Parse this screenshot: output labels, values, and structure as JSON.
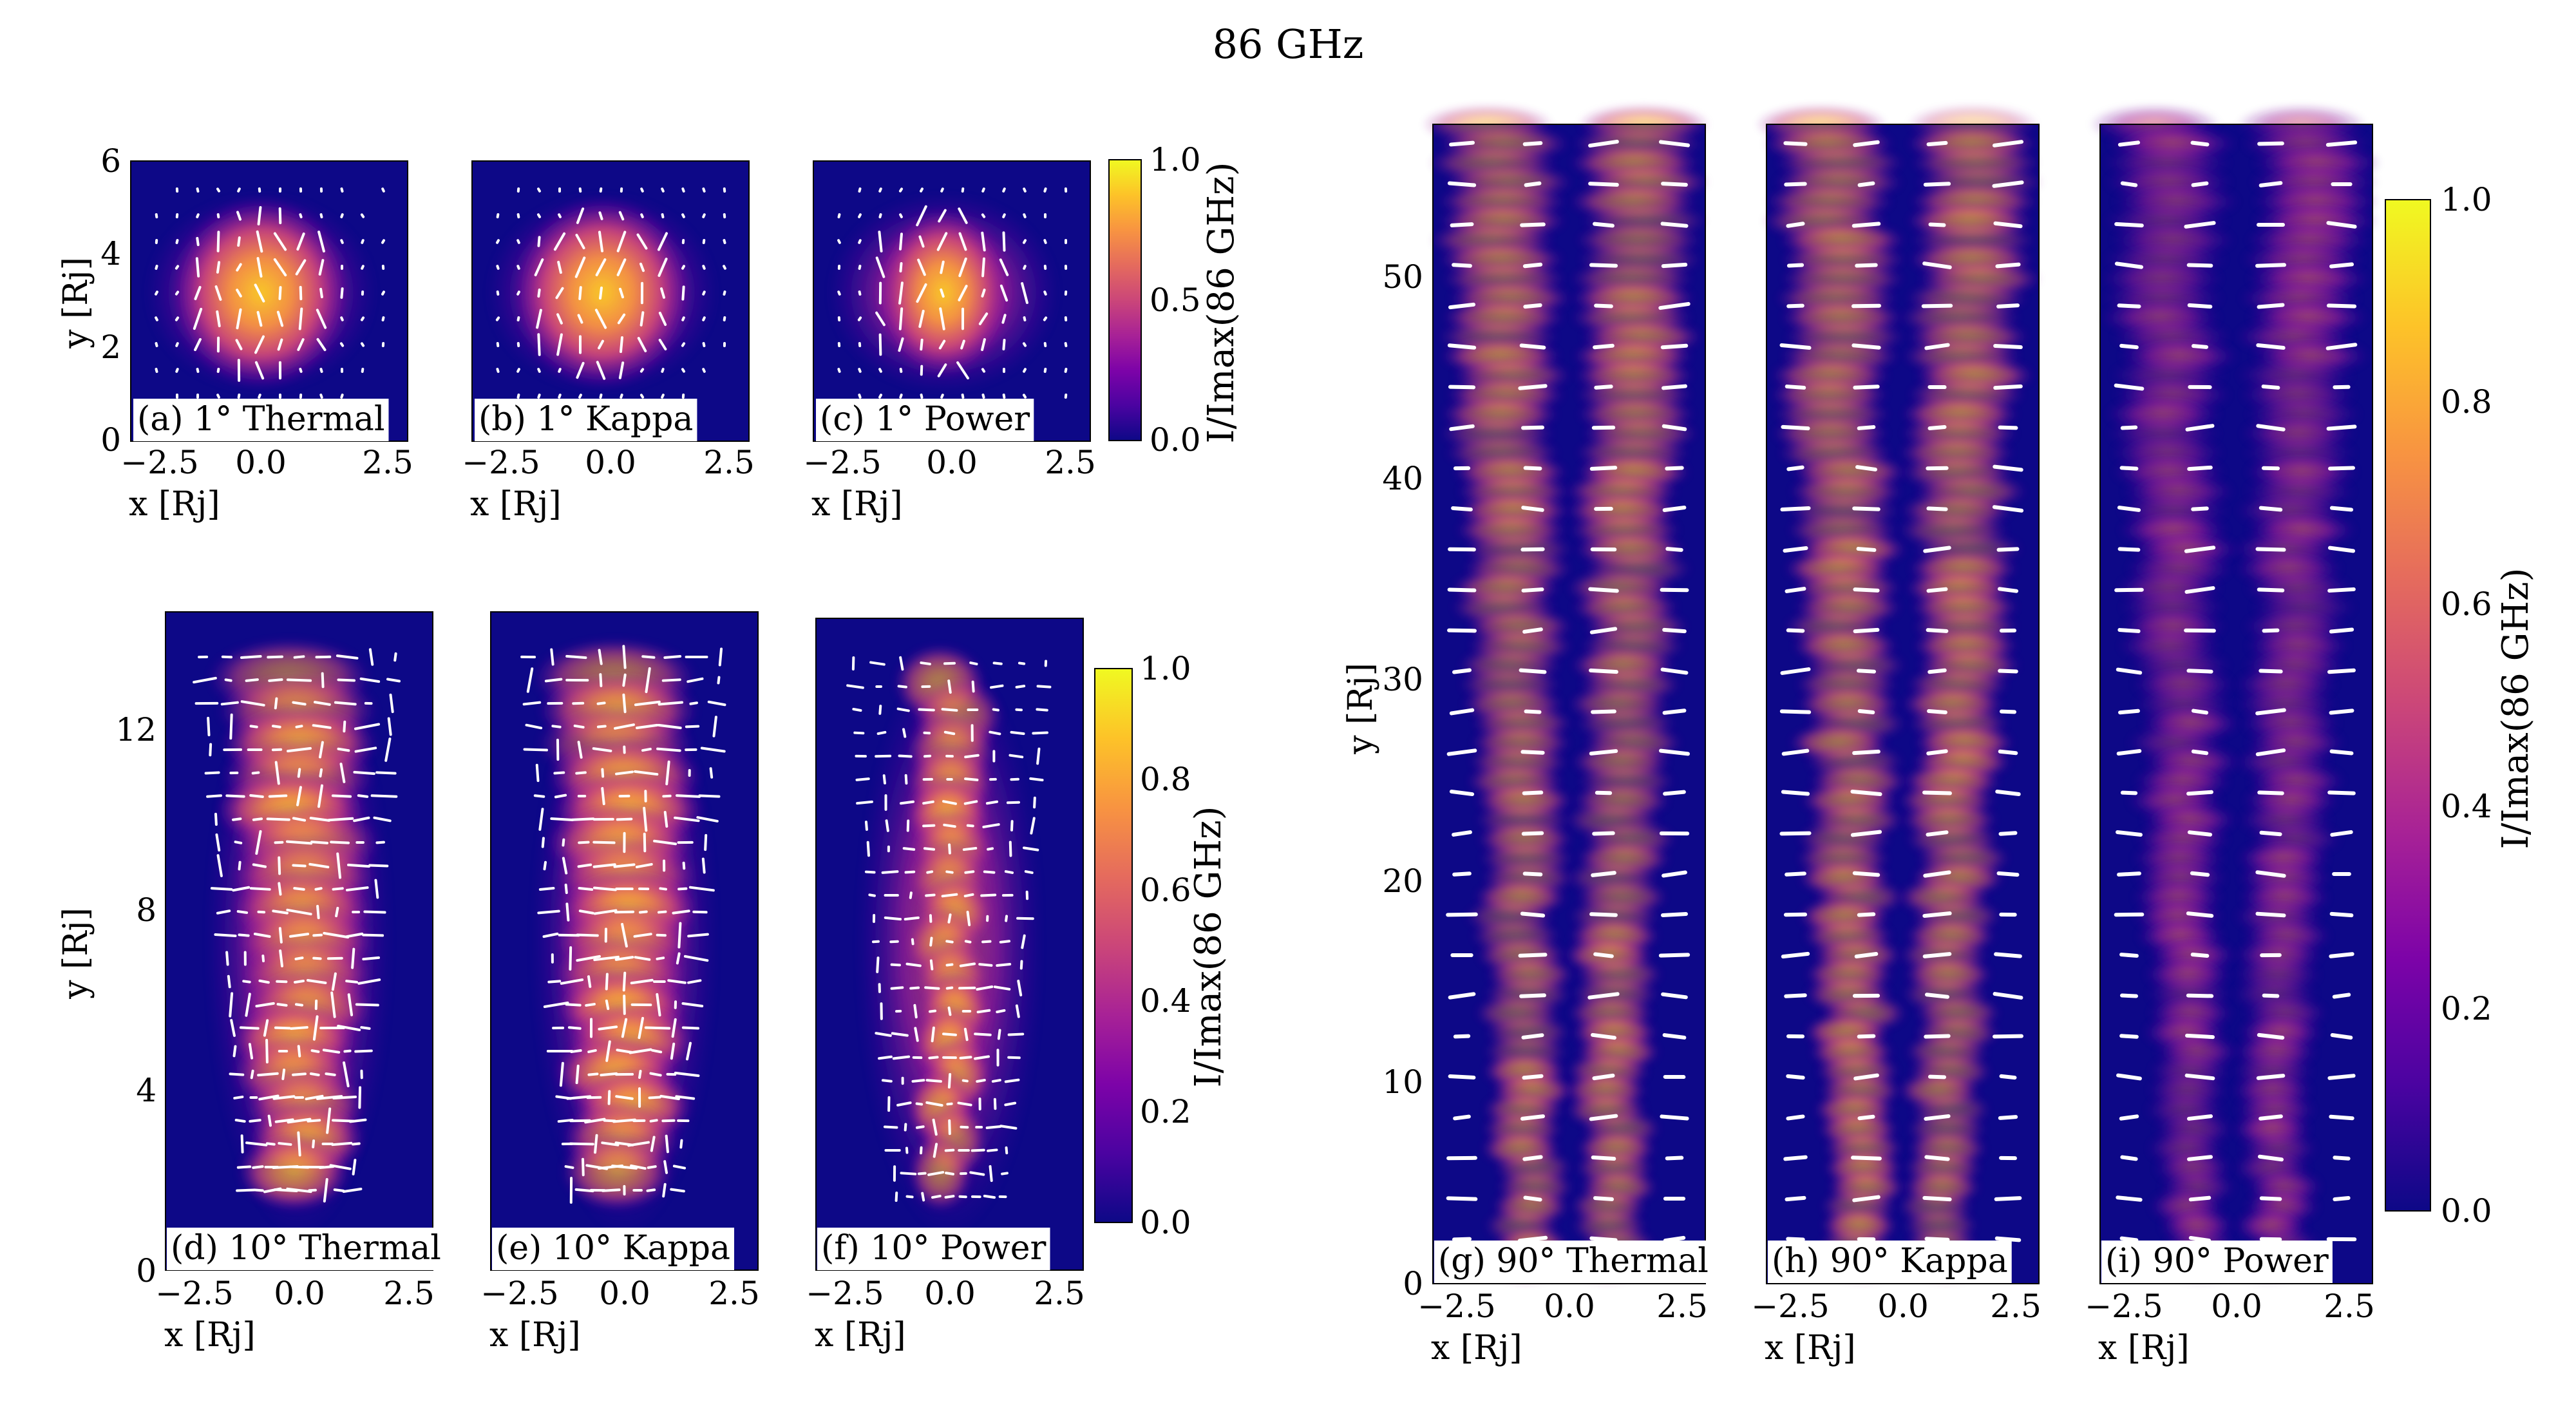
{
  "figure": {
    "title": "86 GHz"
  },
  "colormap": {
    "name": "plasma",
    "stops": [
      "#0d0887",
      "#4b03a1",
      "#7d03a8",
      "#a82296",
      "#cb4679",
      "#e56b5d",
      "#f89441",
      "#fdc328",
      "#f0f921"
    ]
  },
  "panels": [
    {
      "id": "a",
      "label": "(a) 1° Thermal",
      "group": "1deg",
      "xlabel": "x [Rj]",
      "ylabel": "y [Rj]",
      "xticks": [
        "−2.5",
        "0.0",
        "2.5"
      ],
      "yticks": [
        "0",
        "2",
        "4",
        "6"
      ]
    },
    {
      "id": "b",
      "label": "(b) 1° Kappa",
      "group": "1deg",
      "xlabel": "x [Rj]",
      "xticks": [
        "−2.5",
        "0.0",
        "2.5"
      ]
    },
    {
      "id": "c",
      "label": "(c) 1° Power",
      "group": "1deg",
      "xlabel": "x [Rj]",
      "xticks": [
        "−2.5",
        "0.0",
        "2.5"
      ]
    },
    {
      "id": "d",
      "label": "(d) 10° Thermal",
      "group": "10deg",
      "xlabel": "x [Rj]",
      "ylabel": "y [Rj]",
      "xticks": [
        "−2.5",
        "0.0",
        "2.5"
      ],
      "yticks": [
        "0",
        "4",
        "8",
        "12"
      ]
    },
    {
      "id": "e",
      "label": "(e) 10° Kappa",
      "group": "10deg",
      "xlabel": "x [Rj]",
      "xticks": [
        "−2.5",
        "0.0",
        "2.5"
      ]
    },
    {
      "id": "f",
      "label": "(f) 10° Power",
      "group": "10deg",
      "xlabel": "x [Rj]",
      "xticks": [
        "−2.5",
        "0.0",
        "2.5"
      ]
    },
    {
      "id": "g",
      "label": "(g) 90° Thermal",
      "group": "90deg",
      "xlabel": "x [Rj]",
      "ylabel": "y [Rj]",
      "xticks": [
        "−2.5",
        "0.0",
        "2.5"
      ],
      "yticks": [
        "0",
        "10",
        "20",
        "30",
        "40",
        "50"
      ]
    },
    {
      "id": "h",
      "label": "(h) 90° Kappa",
      "group": "90deg",
      "xlabel": "x [Rj]",
      "xticks": [
        "−2.5",
        "0.0",
        "2.5"
      ]
    },
    {
      "id": "i",
      "label": "(i) 90° Power",
      "group": "90deg",
      "xlabel": "x [Rj]",
      "xticks": [
        "−2.5",
        "0.0",
        "2.5"
      ]
    }
  ],
  "colorbars": [
    {
      "id": "cb1",
      "label": "I/Imax(86 GHz)",
      "ticks": [
        "0.0",
        "0.5",
        "1.0"
      ]
    },
    {
      "id": "cb2",
      "label": "I/Imax(86 GHz)",
      "ticks": [
        "0.0",
        "0.2",
        "0.4",
        "0.6",
        "0.8",
        "1.0"
      ]
    },
    {
      "id": "cb3",
      "label": "I/Imax(86 GHz)",
      "ticks": [
        "0.0",
        "0.2",
        "0.4",
        "0.6",
        "0.8",
        "1.0"
      ]
    }
  ],
  "chart_data": {
    "type": "heatmap",
    "title": "86 GHz",
    "quantity": "I/Imax(86 GHz)",
    "x_range": [
      -3,
      3
    ],
    "series": [
      {
        "panel": "a",
        "inclination_deg": 1,
        "model": "Thermal",
        "y_range": [
          0,
          6
        ],
        "color_range": [
          0,
          1
        ]
      },
      {
        "panel": "b",
        "inclination_deg": 1,
        "model": "Kappa",
        "y_range": [
          0,
          6
        ],
        "color_range": [
          0,
          1
        ]
      },
      {
        "panel": "c",
        "inclination_deg": 1,
        "model": "Power",
        "y_range": [
          0,
          6
        ],
        "color_range": [
          0,
          1
        ]
      },
      {
        "panel": "d",
        "inclination_deg": 10,
        "model": "Thermal",
        "y_range": [
          0,
          14.5
        ],
        "color_range": [
          0,
          1
        ]
      },
      {
        "panel": "e",
        "inclination_deg": 10,
        "model": "Kappa",
        "y_range": [
          0,
          14.5
        ],
        "color_range": [
          0,
          1
        ]
      },
      {
        "panel": "f",
        "inclination_deg": 10,
        "model": "Power",
        "y_range": [
          0,
          14.5
        ],
        "color_range": [
          0,
          1
        ]
      },
      {
        "panel": "g",
        "inclination_deg": 90,
        "model": "Thermal",
        "y_range": [
          0,
          58
        ],
        "color_range": [
          0,
          1
        ]
      },
      {
        "panel": "h",
        "inclination_deg": 90,
        "model": "Kappa",
        "y_range": [
          0,
          58
        ],
        "color_range": [
          0,
          1
        ]
      },
      {
        "panel": "i",
        "inclination_deg": 90,
        "model": "Power",
        "y_range": [
          0,
          58
        ],
        "color_range": [
          0,
          1
        ]
      }
    ],
    "overlay": "polarization vectors (white ticks)"
  }
}
